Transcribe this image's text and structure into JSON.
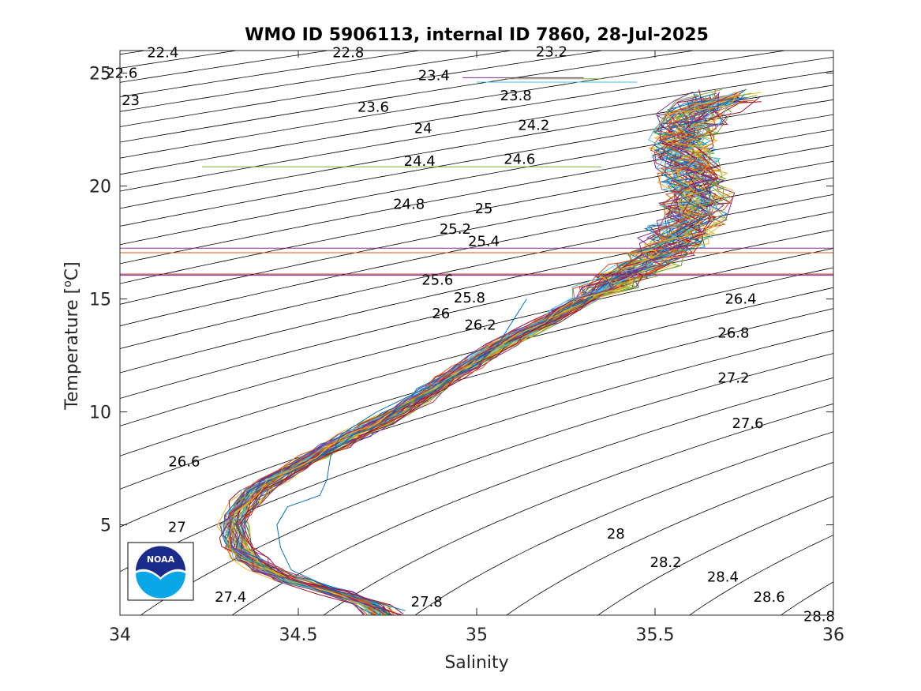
{
  "chart_data": {
    "type": "line",
    "title": "WMO ID 5906113, internal ID 7860, 28-Jul-2025",
    "xlabel": "Salinity",
    "ylabel": "Temperature [",
    "ylabel_unit_sup": "o",
    "ylabel_unit_tail": "C]",
    "xlim": [
      34,
      36
    ],
    "ylim": [
      1,
      26
    ],
    "x_ticks": [
      "34",
      "34.5",
      "35",
      "35.5",
      "36"
    ],
    "x_tick_values": [
      34,
      34.5,
      35,
      35.5,
      36
    ],
    "y_ticks": [
      "5",
      "10",
      "15",
      "20",
      "25"
    ],
    "y_tick_values": [
      5,
      10,
      15,
      20,
      25
    ],
    "grid": false,
    "isopycnal_labels": [
      {
        "text": "22.4",
        "s": 34.12,
        "t": 25.92
      },
      {
        "text": "22.6",
        "s": 34.005,
        "t": 25.0
      },
      {
        "text": "23",
        "s": 34.03,
        "t": 23.8
      },
      {
        "text": "22.8",
        "s": 34.64,
        "t": 25.92
      },
      {
        "text": "23.2",
        "s": 35.21,
        "t": 25.95
      },
      {
        "text": "23.4",
        "s": 34.88,
        "t": 24.9
      },
      {
        "text": "23.6",
        "s": 34.71,
        "t": 23.5
      },
      {
        "text": "23.8",
        "s": 35.11,
        "t": 24.0
      },
      {
        "text": "24",
        "s": 34.85,
        "t": 22.55
      },
      {
        "text": "24.2",
        "s": 35.16,
        "t": 22.7
      },
      {
        "text": "24.4",
        "s": 34.84,
        "t": 21.1
      },
      {
        "text": "24.6",
        "s": 35.12,
        "t": 21.2
      },
      {
        "text": "24.8",
        "s": 34.81,
        "t": 19.2
      },
      {
        "text": "25",
        "s": 35.02,
        "t": 19.0
      },
      {
        "text": "25.2",
        "s": 34.94,
        "t": 18.1
      },
      {
        "text": "25.4",
        "s": 35.02,
        "t": 17.55
      },
      {
        "text": "25.6",
        "s": 34.89,
        "t": 15.85
      },
      {
        "text": "25.8",
        "s": 34.98,
        "t": 15.05
      },
      {
        "text": "26",
        "s": 34.9,
        "t": 14.35
      },
      {
        "text": "26.2",
        "s": 35.01,
        "t": 13.85
      },
      {
        "text": "26.4",
        "s": 35.74,
        "t": 15.0
      },
      {
        "text": "26.8",
        "s": 35.72,
        "t": 13.5
      },
      {
        "text": "27.2",
        "s": 35.72,
        "t": 11.5
      },
      {
        "text": "27.6",
        "s": 35.76,
        "t": 9.5
      },
      {
        "text": "26.6",
        "s": 34.18,
        "t": 7.8
      },
      {
        "text": "27",
        "s": 34.16,
        "t": 4.9
      },
      {
        "text": "28",
        "s": 35.39,
        "t": 4.6
      },
      {
        "text": "28.2",
        "s": 35.53,
        "t": 3.35
      },
      {
        "text": "28.4",
        "s": 35.69,
        "t": 2.7
      },
      {
        "text": "27.4",
        "s": 34.31,
        "t": 1.8
      },
      {
        "text": "27.8",
        "s": 34.86,
        "t": 1.6
      },
      {
        "text": "28.6",
        "s": 35.82,
        "t": 1.8
      },
      {
        "text": "28.8",
        "s": 35.96,
        "t": 0.95
      }
    ],
    "series_note": "many overlapping profile lines",
    "profile_mean": {
      "t": [
        1.0,
        1.5,
        2.0,
        2.5,
        3.0,
        3.5,
        4.0,
        4.5,
        5.0,
        5.5,
        6.0,
        6.5,
        7.0,
        7.5,
        8.0,
        8.5,
        9.0,
        9.5,
        10.0,
        10.5,
        11.0,
        11.5,
        12.0,
        12.5,
        13.0,
        13.5,
        14.0,
        14.5,
        15.0,
        15.5,
        16.0,
        16.5,
        17.0,
        17.5,
        18.0,
        18.5,
        19.0,
        19.5,
        20.0,
        20.5,
        21.0,
        21.5,
        22.0,
        22.5,
        23.0,
        23.5,
        24.0
      ],
      "s": [
        34.74,
        34.7,
        34.6,
        34.49,
        34.41,
        34.36,
        34.33,
        34.32,
        34.32,
        34.33,
        34.35,
        34.38,
        34.43,
        34.48,
        34.54,
        34.6,
        34.66,
        34.72,
        34.78,
        34.83,
        34.88,
        34.92,
        34.97,
        35.02,
        35.07,
        35.13,
        35.19,
        35.25,
        35.3,
        35.36,
        35.41,
        35.47,
        35.51,
        35.55,
        35.58,
        35.6,
        35.61,
        35.62,
        35.61,
        35.6,
        35.59,
        35.58,
        35.57,
        35.58,
        35.6,
        35.64,
        35.7
      ]
    },
    "profile_count": 60,
    "horizontal_lines": [
      {
        "t": 17.25,
        "color": "#7E2F8E"
      },
      {
        "t": 17.05,
        "color": "#D95319"
      },
      {
        "t": 16.1,
        "color": "#A2142F"
      },
      {
        "t": 16.05,
        "color": "#7E2F8E"
      }
    ],
    "stray_lines": [
      {
        "s1": 34.23,
        "s2": 35.35,
        "t": 20.85,
        "color": "#77AC30"
      },
      {
        "s1": 35.0,
        "s2": 35.45,
        "t": 24.6,
        "color": "#4DBEEE"
      },
      {
        "s1": 35.08,
        "s2": 35.35,
        "t": 24.75,
        "color": "#77AC30"
      },
      {
        "s1": 34.96,
        "s2": 35.3,
        "t": 24.8,
        "color": "#7E2F8E"
      }
    ],
    "anomalous_profile": {
      "t": [
        1.2,
        2.0,
        3.0,
        4.0,
        5.0,
        5.8,
        6.3,
        7.0,
        8.0,
        9.0,
        10.0,
        11.0,
        11.5,
        12.0,
        12.5,
        13.0,
        14.0,
        15.0
      ],
      "s": [
        34.8,
        34.62,
        34.48,
        34.45,
        34.44,
        34.47,
        34.56,
        34.58,
        34.59,
        34.62,
        34.72,
        34.85,
        34.93,
        34.99,
        35.03,
        35.06,
        35.1,
        35.14
      ],
      "color": "#0072BD"
    },
    "palette": [
      "#0072BD",
      "#D95319",
      "#EDB120",
      "#7E2F8E",
      "#77AC30",
      "#4DBEEE",
      "#A2142F"
    ]
  },
  "logo": {
    "name": "noaa-logo",
    "text": "NOAA",
    "colors": {
      "top": "#1a2b8c",
      "bottom": "#0aa7e8",
      "ring": "#ffffff"
    }
  }
}
